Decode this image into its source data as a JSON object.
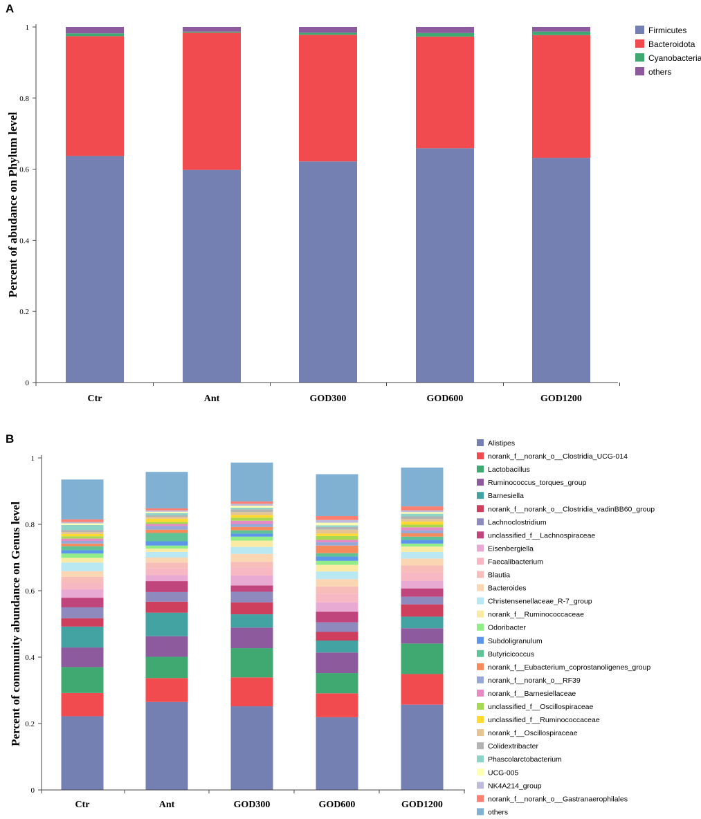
{
  "chart_data": [
    {
      "panel": "A",
      "type": "bar",
      "stacked": true,
      "title": "",
      "xlabel": "",
      "ylabel": "Percent of abudance on Phylum level",
      "ylim": [
        0,
        1
      ],
      "yticks": [
        0,
        0.2,
        0.4,
        0.6,
        0.8,
        1
      ],
      "legend_position": "top-right",
      "categories": [
        "Ctr",
        "Ant",
        "GOD300",
        "GOD600",
        "GOD1200"
      ],
      "series": [
        {
          "name": "Firmicutes",
          "color": "#7580b2",
          "values": [
            0.637,
            0.598,
            0.622,
            0.659,
            0.632
          ]
        },
        {
          "name": "Bacteroidota",
          "color": "#f24b4f",
          "values": [
            0.337,
            0.386,
            0.356,
            0.314,
            0.345
          ]
        },
        {
          "name": "Cyanobacteria",
          "color": "#3fa971",
          "values": [
            0.008,
            0.003,
            0.006,
            0.01,
            0.01
          ]
        },
        {
          "name": "others",
          "color": "#8e5a9e",
          "values": [
            0.018,
            0.013,
            0.016,
            0.017,
            0.013
          ]
        }
      ]
    },
    {
      "panel": "B",
      "type": "bar",
      "stacked": true,
      "title": "",
      "xlabel": "",
      "ylabel": "Percent of community abundance on Genus level",
      "ylim": [
        0,
        1
      ],
      "yticks": [
        0,
        0.2,
        0.4,
        0.6,
        0.8,
        1
      ],
      "legend_position": "right",
      "categories": [
        "Ctr",
        "Ant",
        "GOD300",
        "GOD600",
        "GOD1200"
      ],
      "series": [
        {
          "name": "Alistipes",
          "color": "#7580b2",
          "values": [
            0.222,
            0.265,
            0.252,
            0.219,
            0.257
          ]
        },
        {
          "name": "norank_f__norank_o__Clostridia_UCG-014",
          "color": "#f24b4f",
          "values": [
            0.07,
            0.072,
            0.087,
            0.072,
            0.092
          ]
        },
        {
          "name": "Lactobacillus",
          "color": "#3fa971",
          "values": [
            0.078,
            0.064,
            0.088,
            0.061,
            0.092
          ]
        },
        {
          "name": "Ruminococcus_torques_group",
          "color": "#8e5a9e",
          "values": [
            0.059,
            0.062,
            0.062,
            0.062,
            0.046
          ]
        },
        {
          "name": "Barnesiella",
          "color": "#43a3a3",
          "values": [
            0.063,
            0.071,
            0.04,
            0.036,
            0.035
          ]
        },
        {
          "name": "norank_f__norank_o__Clostridia_vadinBB60_group",
          "color": "#cd3f5c",
          "values": [
            0.025,
            0.033,
            0.036,
            0.026,
            0.037
          ]
        },
        {
          "name": "Lachnoclostridium",
          "color": "#8e8abe",
          "values": [
            0.033,
            0.029,
            0.032,
            0.029,
            0.023
          ]
        },
        {
          "name": "unclassified_f__Lachnospiraceae",
          "color": "#c0457c",
          "values": [
            0.029,
            0.033,
            0.019,
            0.032,
            0.025
          ]
        },
        {
          "name": "Eisenbergiella",
          "color": "#e8aad2",
          "values": [
            0.025,
            0.018,
            0.03,
            0.028,
            0.023
          ]
        },
        {
          "name": "Faecalibacterium",
          "color": "#f7b8c3",
          "values": [
            0.02,
            0.02,
            0.024,
            0.026,
            0.025
          ]
        },
        {
          "name": "Blautia",
          "color": "#f6bdb9",
          "values": [
            0.018,
            0.018,
            0.017,
            0.022,
            0.021
          ]
        },
        {
          "name": "Bacteroides",
          "color": "#fad6b2",
          "values": [
            0.017,
            0.015,
            0.024,
            0.022,
            0.021
          ]
        },
        {
          "name": "Christensenellaceae_R-7_group",
          "color": "#b9e7f2",
          "values": [
            0.026,
            0.017,
            0.021,
            0.023,
            0.02
          ]
        },
        {
          "name": "norank_f__Ruminococcaceae",
          "color": "#fbeaa3",
          "values": [
            0.014,
            0.01,
            0.019,
            0.02,
            0.016
          ]
        },
        {
          "name": "Odoribacter",
          "color": "#90ed88",
          "values": [
            0.013,
            0.009,
            0.012,
            0.012,
            0.009
          ]
        },
        {
          "name": "Subdoligranulum",
          "color": "#5d95e8",
          "values": [
            0.01,
            0.013,
            0.009,
            0.013,
            0.011
          ]
        },
        {
          "name": "Butyricicoccus",
          "color": "#60c397",
          "values": [
            0.012,
            0.025,
            0.01,
            0.01,
            0.01
          ]
        },
        {
          "name": "norank_f__Eubacterium_coprostanoligenes_group",
          "color": "#f58a5d",
          "values": [
            0.008,
            0.01,
            0.01,
            0.023,
            0.01
          ]
        },
        {
          "name": "norank_f__norank_o__RF39",
          "color": "#96a8d6",
          "values": [
            0.008,
            0.011,
            0.009,
            0.01,
            0.009
          ]
        },
        {
          "name": "norank_f__Barnesiellaceae",
          "color": "#e78ac3",
          "values": [
            0.007,
            0.006,
            0.01,
            0.007,
            0.009
          ]
        },
        {
          "name": "unclassified_f__Oscillospiraceae",
          "color": "#a6d854",
          "values": [
            0.007,
            0.006,
            0.009,
            0.012,
            0.008
          ]
        },
        {
          "name": "unclassified_f__Ruminococcaceae",
          "color": "#ffd92f",
          "values": [
            0.007,
            0.01,
            0.008,
            0.007,
            0.009
          ]
        },
        {
          "name": "norank_f__Oscillospiraceae",
          "color": "#e5c494",
          "values": [
            0.006,
            0.005,
            0.009,
            0.012,
            0.008
          ]
        },
        {
          "name": "Colidextribacter",
          "color": "#b3b3b3",
          "values": [
            0.006,
            0.005,
            0.008,
            0.008,
            0.008
          ]
        },
        {
          "name": "Phascolarctobacterium",
          "color": "#8dd3c7",
          "values": [
            0.015,
            0.007,
            0.005,
            0.005,
            0.008
          ]
        },
        {
          "name": "UCG-005",
          "color": "#ffffb3",
          "values": [
            0.005,
            0.004,
            0.006,
            0.008,
            0.005
          ]
        },
        {
          "name": "NK4A214_group",
          "color": "#bebada",
          "values": [
            0.004,
            0.004,
            0.006,
            0.008,
            0.005
          ]
        },
        {
          "name": "norank_f__norank_o__Gastranaerophilales",
          "color": "#fb8072",
          "values": [
            0.008,
            0.006,
            0.007,
            0.012,
            0.012
          ]
        },
        {
          "name": "others",
          "color": "#80b1d3",
          "values": [
            0.12,
            0.11,
            0.117,
            0.126,
            0.117
          ]
        }
      ]
    }
  ]
}
